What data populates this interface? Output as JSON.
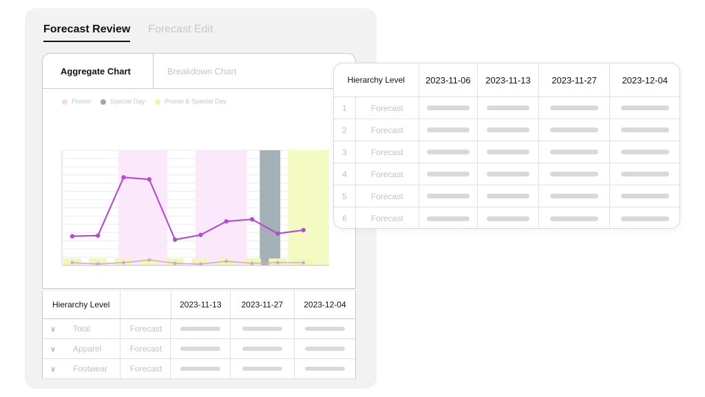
{
  "tabs": [
    {
      "label": "Forecast Review",
      "active": true
    },
    {
      "label": "Forecast Edit",
      "active": false
    }
  ],
  "subtabs": [
    {
      "label": "Aggregate Chart",
      "active": true
    },
    {
      "label": "Breakdown Chart",
      "active": false
    }
  ],
  "legend": [
    {
      "label": "Promo",
      "color": "#f7d6f5"
    },
    {
      "label": "Special Day",
      "color": "#98a8b0"
    },
    {
      "label": "Promo & Special Day",
      "color": "#eef79a"
    }
  ],
  "chart_data": {
    "type": "line",
    "x": [
      1,
      2,
      3,
      4,
      5,
      6,
      7,
      8,
      9,
      10,
      11
    ],
    "series": [
      {
        "color": "#b54cc9",
        "values": [
          43,
          44,
          130,
          127,
          38,
          45,
          65,
          68,
          47,
          52,
          null
        ]
      },
      {
        "color": "#d3a6db",
        "values": [
          4,
          2,
          4,
          8,
          3,
          2,
          6,
          3,
          4,
          4,
          null
        ]
      }
    ],
    "bands": [
      {
        "type": "promo",
        "from": 2.8,
        "to": 4.7
      },
      {
        "type": "promo",
        "from": 5.8,
        "to": 7.8
      },
      {
        "type": "special",
        "from": 8.3,
        "to": 9.1
      },
      {
        "type": "promo-special",
        "from": 9.4,
        "to": 11.0
      }
    ],
    "ylim": [
      0,
      170
    ],
    "grid": true
  },
  "bottom_table": {
    "headers": [
      "Hierarchy Level",
      "",
      "2023-11-13",
      "2023-11-27",
      "2023-12-04"
    ],
    "rows": [
      {
        "name": "Total",
        "type": "Forecast"
      },
      {
        "name": "Apparel",
        "type": "Forecast"
      },
      {
        "name": "Footwear",
        "type": "Forecast"
      }
    ],
    "chevron": "chevron-down-icon"
  },
  "front_table": {
    "headers": [
      "Hierarchy Level",
      "2023-11-06",
      "2023-11-13",
      "2023-11-27",
      "2023-12-04"
    ],
    "rows": [
      {
        "num": "1",
        "type": "Forecast"
      },
      {
        "num": "2",
        "type": "Forecast"
      },
      {
        "num": "3",
        "type": "Forecast"
      },
      {
        "num": "4",
        "type": "Forecast"
      },
      {
        "num": "5",
        "type": "Forecast"
      },
      {
        "num": "6",
        "type": "Forecast"
      }
    ]
  }
}
